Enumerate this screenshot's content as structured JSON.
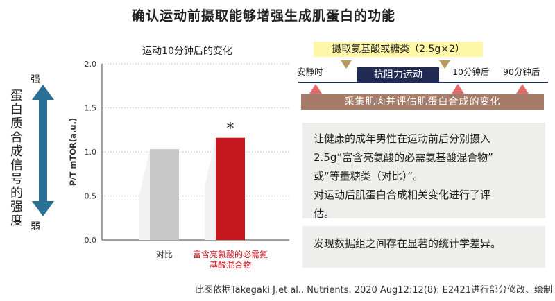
{
  "title": "确认运动前摄取能够增强生成肌蛋白的功能",
  "y_side_label": "蛋白质合成信号的强度",
  "arrow": {
    "top_label": "强",
    "bottom_label": "弱",
    "color": "#2a6f95"
  },
  "chart_data": {
    "type": "bar",
    "title": "运动10分钟后的变化",
    "ylabel": "P/T mTOR(a.u.)",
    "ylim": [
      0,
      2.0
    ],
    "yticks": [
      0.0,
      0.5,
      1.0,
      1.5,
      2.0
    ],
    "ytick_labels": [
      "0.0",
      "0.5",
      "1.0",
      "1.5",
      "2.0"
    ],
    "categories": [
      "对比",
      "富含亮氨酸的必需氨基酸混合物"
    ],
    "category_labels": [
      [
        "对比"
      ],
      [
        "富含亮氨酸的必需氨",
        "基酸混合物"
      ]
    ],
    "values": [
      1.03,
      1.16
    ],
    "colors": [
      "#c8c8c8",
      "#c4161c"
    ],
    "label_colors": [
      "#333333",
      "#c4161c"
    ],
    "annotation": "*",
    "grid": true
  },
  "protocol": {
    "intake_label": "摄取氨基酸或糖类（2.5g×2）",
    "exercise_label": "抗阻力运动",
    "times": [
      "安静时",
      "10分钟后",
      "90分钟后"
    ],
    "biopsy_label": "采集肌肉并评估肌蛋白合成的变化"
  },
  "description_lines": [
    "让健康的成年男性在运动前后分别摄入",
    "2.5g“富含亮氨酸的必需氨基酸混合物”",
    "或“等量糖类（对比）”。",
    "对运动后肌蛋白合成相关变化进行了评",
    "估。"
  ],
  "finding": "发现数据组之间存在显著的统计学差异。",
  "citation": "此图依据Takegaki J.et al., Nutrients. 2020 Aug12:12(8): E2421进行部分修改、绘制"
}
